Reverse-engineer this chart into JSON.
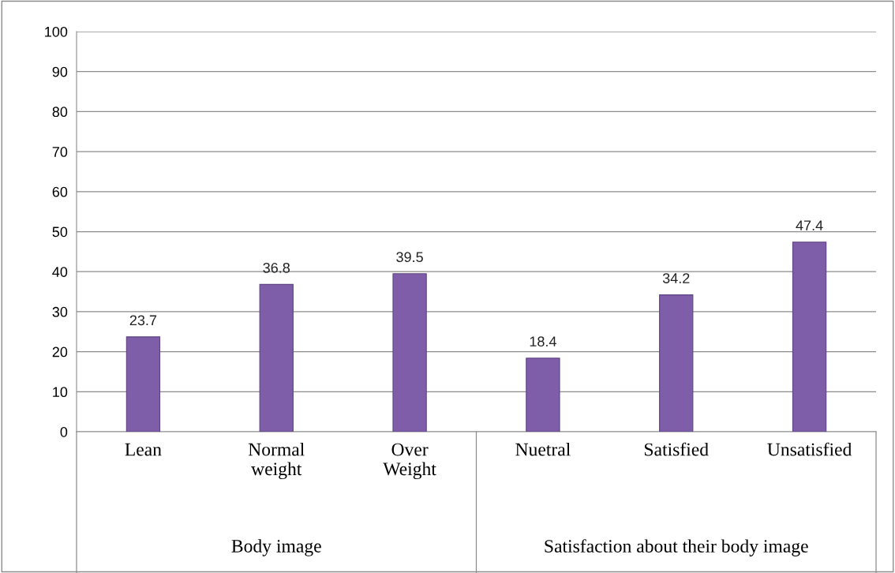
{
  "chart_data": {
    "type": "bar",
    "categories": [
      "Lean",
      "Normal\nweight",
      "Over\nWeight",
      "Nuetral",
      "Satisfied",
      "Unsatisfied"
    ],
    "values": [
      23.7,
      36.8,
      39.5,
      18.4,
      34.2,
      47.4
    ],
    "color": "#7e5ea8",
    "data_labels": true,
    "ylim": [
      0,
      100
    ],
    "yticks": [
      0,
      10,
      20,
      30,
      40,
      50,
      60,
      70,
      80,
      90,
      100
    ],
    "grid": "y",
    "annotations": [
      "Body image",
      "Satisfaction about their body image"
    ]
  }
}
